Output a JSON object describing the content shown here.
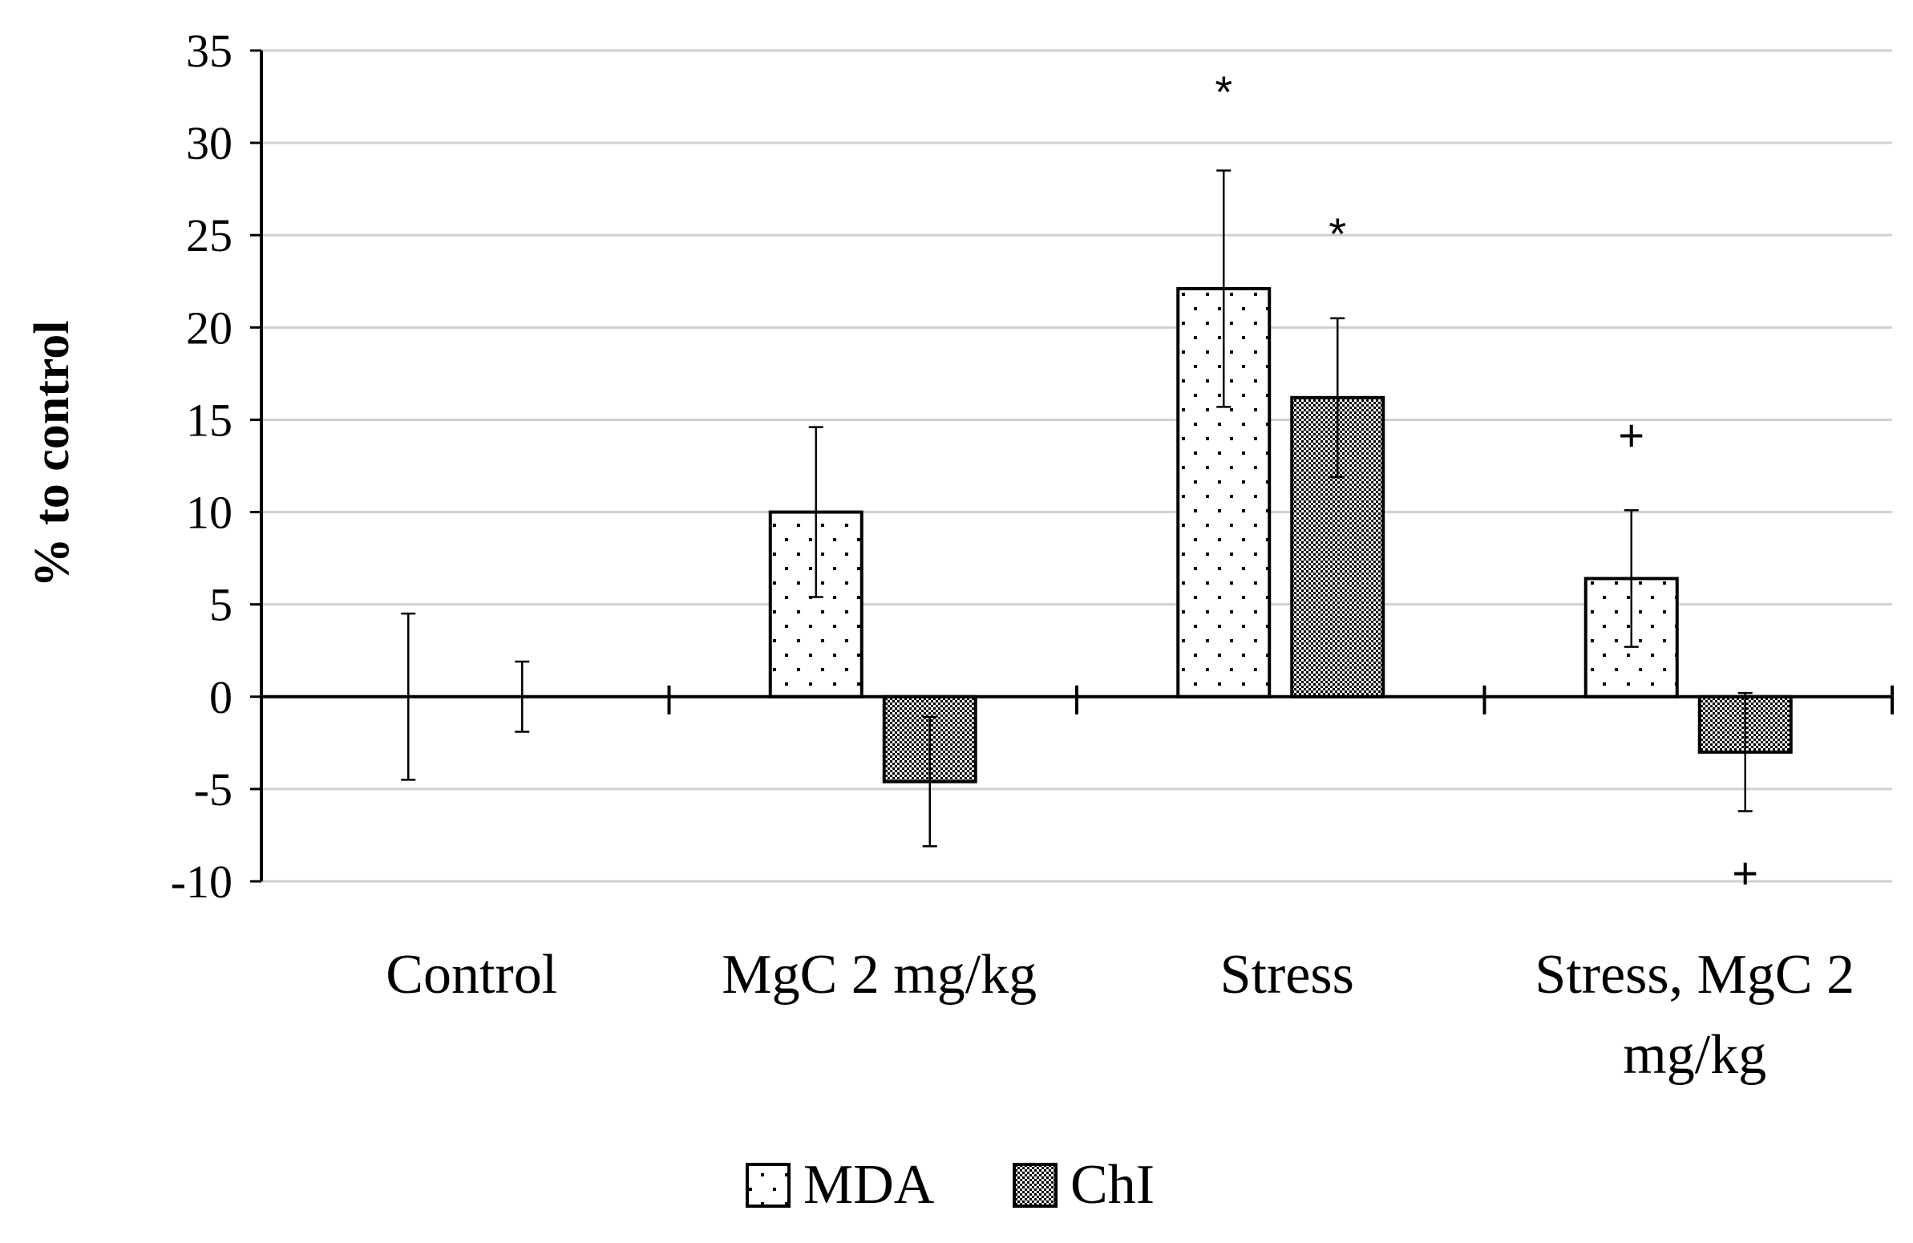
{
  "chart_data": {
    "type": "bar",
    "title": "",
    "xlabel": "",
    "ylabel": "% to control",
    "ylim": [
      -10,
      35
    ],
    "yticks": [
      35,
      30,
      25,
      20,
      15,
      10,
      5,
      0,
      -5,
      -10
    ],
    "ytick_labels": [
      "35",
      "30",
      "25",
      "20",
      "15",
      "10",
      "5",
      "0",
      "-5",
      "-10"
    ],
    "grid": true,
    "legend_position": "bottom-center",
    "categories": [
      [
        "Control"
      ],
      [
        "MgC 2 mg/kg"
      ],
      [
        "Stress"
      ],
      [
        "Stress, MgC 2",
        "mg/kg"
      ]
    ],
    "series": [
      {
        "name": "MDA",
        "pattern": "dots",
        "values": [
          0,
          10,
          22.1,
          6.4
        ],
        "errors": [
          4.5,
          4.6,
          6.4,
          3.7
        ],
        "annotations": [
          "",
          "",
          "*",
          "+"
        ]
      },
      {
        "name": "ChI",
        "pattern": "dense",
        "values": [
          0,
          -4.6,
          16.2,
          -3
        ],
        "errors": [
          1.9,
          3.5,
          4.3,
          3.2
        ],
        "annotations": [
          "",
          "",
          "*",
          "+"
        ]
      }
    ],
    "annotation_positions": [
      [
        null,
        null,
        32.7,
        14.1
      ],
      [
        null,
        null,
        25,
        -9.6
      ]
    ]
  }
}
